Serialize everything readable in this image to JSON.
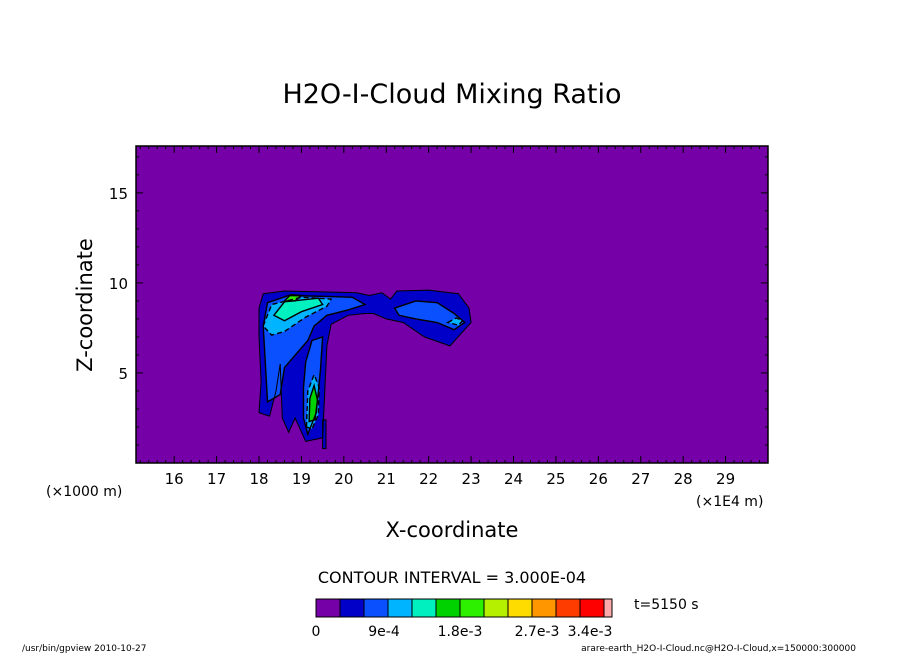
{
  "chart_data": {
    "type": "heatmap",
    "title": "H2O-I-Cloud Mixing Ratio",
    "xlabel": "X-coordinate",
    "ylabel": "Z-coordinate",
    "x_units": "(×1E4 m)",
    "y_units": "(×1000 m)",
    "xlim": [
      15.1,
      30.0
    ],
    "ylim": [
      0.0,
      17.6
    ],
    "xticks": [
      "16",
      "17",
      "18",
      "19",
      "20",
      "21",
      "22",
      "23",
      "24",
      "25",
      "26",
      "27",
      "28",
      "29"
    ],
    "yticks": [
      "5",
      "10",
      "15"
    ],
    "contour_interval": "CONTOUR INTERVAL = 3.000E-04",
    "time": "t=5150 s",
    "colorbar": {
      "colors": [
        "#7500a8",
        "#0000c8",
        "#0a50ff",
        "#00b4ff",
        "#00f0c0",
        "#00d200",
        "#2cf000",
        "#b4f000",
        "#ffdc00",
        "#ff9600",
        "#ff3c00",
        "#ff0000",
        "#ffaaaa"
      ],
      "labels": [
        "0",
        "9e-4",
        "1.8e-3",
        "2.7e-3",
        "3.4e-3"
      ]
    },
    "regions": [
      {
        "name": "background",
        "level": 0,
        "value": "0",
        "points": [
          [
            15.1,
            0
          ],
          [
            30,
            0
          ],
          [
            30,
            17.6
          ],
          [
            15.1,
            17.6
          ]
        ]
      },
      {
        "name": "main-cloud",
        "level": 1,
        "value": "3e-4",
        "points": [
          [
            18.0,
            2.8
          ],
          [
            18.05,
            4.5
          ],
          [
            18.0,
            7.0
          ],
          [
            18.0,
            8.6
          ],
          [
            18.1,
            9.4
          ],
          [
            18.6,
            9.55
          ],
          [
            19.5,
            9.5
          ],
          [
            20.3,
            9.45
          ],
          [
            20.6,
            9.3
          ],
          [
            20.9,
            9.45
          ],
          [
            21.1,
            9.1
          ],
          [
            21.25,
            9.55
          ],
          [
            22.0,
            9.6
          ],
          [
            22.7,
            9.4
          ],
          [
            22.95,
            8.6
          ],
          [
            23.0,
            7.8
          ],
          [
            22.5,
            6.5
          ],
          [
            21.9,
            7.0
          ],
          [
            21.4,
            7.8
          ],
          [
            21.0,
            8.0
          ],
          [
            20.7,
            8.3
          ],
          [
            20.5,
            8.3
          ],
          [
            20.1,
            8.2
          ],
          [
            19.7,
            7.7
          ],
          [
            19.6,
            6.5
          ],
          [
            19.55,
            4.0
          ],
          [
            19.5,
            1.4
          ],
          [
            19.1,
            1.2
          ],
          [
            18.85,
            2.5
          ],
          [
            18.7,
            1.7
          ],
          [
            18.55,
            2.5
          ],
          [
            18.5,
            5.5
          ],
          [
            18.4,
            4.0
          ],
          [
            18.25,
            2.6
          ]
        ]
      },
      {
        "name": "thin-streak",
        "level": 1,
        "value": "3e-4",
        "points": [
          [
            19.5,
            0.8
          ],
          [
            19.58,
            0.8
          ],
          [
            19.58,
            2.4
          ],
          [
            19.5,
            2.4
          ]
        ]
      },
      {
        "name": "west-core",
        "level": 2,
        "value": "6e-4",
        "points": [
          [
            18.2,
            3.4
          ],
          [
            18.15,
            5.5
          ],
          [
            18.1,
            7.6
          ],
          [
            18.2,
            8.9
          ],
          [
            18.7,
            9.3
          ],
          [
            19.6,
            9.25
          ],
          [
            20.2,
            9.2
          ],
          [
            20.5,
            8.8
          ],
          [
            20.1,
            8.5
          ],
          [
            19.6,
            8.2
          ],
          [
            19.3,
            7.6
          ],
          [
            19.15,
            6.8
          ],
          [
            18.6,
            5.3
          ],
          [
            18.5,
            3.8
          ]
        ]
      },
      {
        "name": "west-core-b",
        "level": 2,
        "value": "6e-4",
        "points": [
          [
            19.05,
            4.2
          ],
          [
            19.1,
            5.6
          ],
          [
            19.25,
            6.8
          ],
          [
            19.5,
            7.0
          ],
          [
            19.45,
            5.2
          ],
          [
            19.35,
            2.8
          ],
          [
            19.15,
            1.6
          ],
          [
            19.05,
            2.5
          ]
        ]
      },
      {
        "name": "east-core",
        "level": 2,
        "value": "6e-4",
        "points": [
          [
            21.2,
            8.6
          ],
          [
            21.7,
            9.0
          ],
          [
            22.2,
            8.9
          ],
          [
            22.6,
            8.3
          ],
          [
            22.85,
            7.8
          ],
          [
            22.6,
            7.4
          ],
          [
            22.2,
            7.8
          ],
          [
            21.7,
            8.0
          ],
          [
            21.3,
            8.2
          ]
        ]
      },
      {
        "name": "upper-core",
        "level": 3,
        "value": "9e-4",
        "points": [
          [
            18.1,
            7.6
          ],
          [
            18.3,
            8.8
          ],
          [
            19.0,
            9.2
          ],
          [
            19.7,
            9.1
          ],
          [
            19.6,
            8.7
          ],
          [
            19.1,
            8.1
          ],
          [
            18.6,
            7.3
          ],
          [
            18.3,
            7.1
          ]
        ]
      },
      {
        "name": "lower-core",
        "level": 3,
        "value": "9e-4",
        "points": [
          [
            19.12,
            2.0
          ],
          [
            19.15,
            4.0
          ],
          [
            19.3,
            4.9
          ],
          [
            19.42,
            4.2
          ],
          [
            19.4,
            2.7
          ],
          [
            19.25,
            1.9
          ]
        ]
      },
      {
        "name": "east-tip",
        "level": 3,
        "value": "9e-4",
        "points": [
          [
            22.45,
            7.8
          ],
          [
            22.65,
            8.05
          ],
          [
            22.8,
            7.9
          ],
          [
            22.7,
            7.65
          ]
        ]
      },
      {
        "name": "upper-max",
        "level": 4,
        "value": "1.2e-3",
        "points": [
          [
            18.35,
            8.2
          ],
          [
            18.6,
            8.95
          ],
          [
            19.4,
            9.15
          ],
          [
            19.5,
            8.8
          ],
          [
            19.0,
            8.4
          ],
          [
            18.6,
            7.9
          ]
        ]
      },
      {
        "name": "lower-max",
        "level": 5,
        "value": "1.5e-3",
        "points": [
          [
            19.18,
            2.3
          ],
          [
            19.2,
            3.6
          ],
          [
            19.3,
            4.3
          ],
          [
            19.38,
            3.5
          ],
          [
            19.32,
            2.4
          ]
        ]
      },
      {
        "name": "upper-peak",
        "level": 6,
        "value": "1.8e-3",
        "points": [
          [
            18.6,
            9.0
          ],
          [
            18.75,
            9.35
          ],
          [
            19.0,
            9.3
          ],
          [
            18.85,
            9.0
          ]
        ]
      }
    ]
  },
  "footer": {
    "left": "/usr/bin/gpview   2010-10-27",
    "right": "arare-earth_H2O-I-Cloud.nc@H2O-I-Cloud,x=150000:300000"
  }
}
